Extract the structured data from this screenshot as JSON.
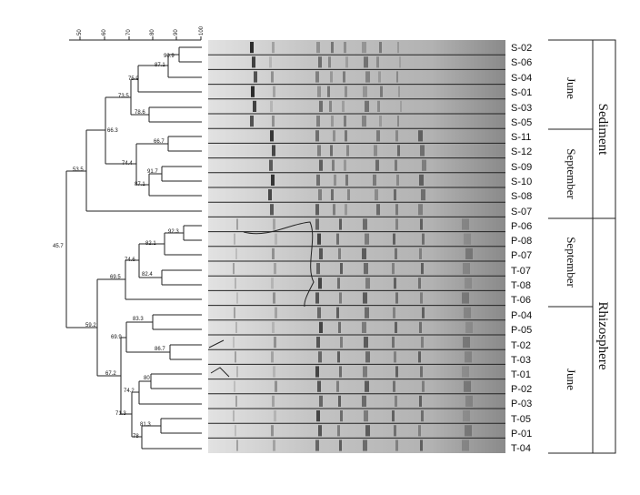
{
  "scale": {
    "ticks": [
      "50",
      "60",
      "70",
      "80",
      "90",
      "100"
    ]
  },
  "samples": [
    "S-02",
    "S-06",
    "S-04",
    "S-01",
    "S-03",
    "S-05",
    "S-11",
    "S-12",
    "S-09",
    "S-10",
    "S-08",
    "S-07",
    "P-06",
    "P-08",
    "P-07",
    "T-07",
    "T-08",
    "T-06",
    "P-04",
    "P-05",
    "T-02",
    "T-03",
    "T-01",
    "P-02",
    "P-03",
    "T-05",
    "P-01",
    "T-04"
  ],
  "node_values": {
    "v909": "90.9",
    "v871a": "87.1",
    "v759": "75.9",
    "v735": "73.5",
    "v786": "78.6",
    "v667": "66.7",
    "v663": "66.3",
    "v744": "74.4",
    "v917": "91.7",
    "v871b": "87.1",
    "v535": "53.5",
    "v457": "45.7",
    "v923": "92.3",
    "v821": "82.1",
    "v746": "74.6",
    "v824": "82.4",
    "v695": "69.5",
    "v592": "59.2",
    "v833": "83.3",
    "v699": "69.9",
    "v867": "86.7",
    "v80": "80",
    "v742": "74.2",
    "v713": "71.3",
    "v813": "81.3",
    "v78": "78",
    "v672": "67.2"
  },
  "groups": {
    "sediment_june": "June",
    "sediment_september": "September",
    "rhizo_september": "September",
    "rhizo_june": "June",
    "sediment": "Sediment",
    "rhizosphere": "Rhizosphere"
  }
}
